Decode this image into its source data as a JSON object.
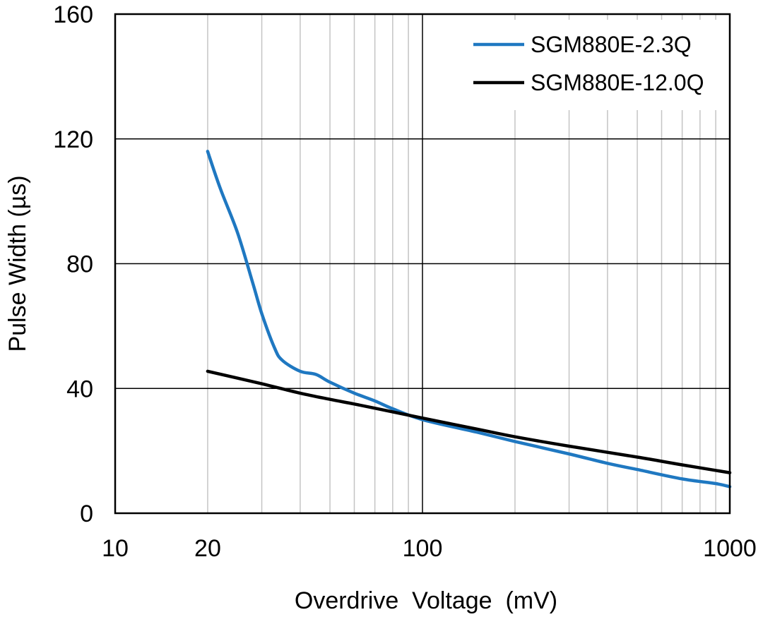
{
  "chart_data": {
    "type": "line",
    "title": "",
    "xlabel": "Overdrive  Voltage  (mV)",
    "ylabel": "Pulse Width (µs)",
    "xscale": "log",
    "xlim": [
      10,
      1000
    ],
    "ylim": [
      0,
      160
    ],
    "x_ticks": [
      10,
      20,
      100,
      1000
    ],
    "x_tick_labels": [
      "10",
      "20",
      "100",
      "1000"
    ],
    "y_ticks": [
      0,
      40,
      80,
      120,
      160
    ],
    "y_tick_labels": [
      "0",
      "40",
      "80",
      "120",
      "160"
    ],
    "grid": true,
    "legend_position": "top-right",
    "series": [
      {
        "name": "SGM880E-2.3Q",
        "color": "#1f78c1",
        "x": [
          20,
          22,
          25,
          28,
          30,
          33,
          35,
          40,
          45,
          50,
          60,
          70,
          80,
          100,
          150,
          200,
          300,
          400,
          500,
          700,
          900,
          1000
        ],
        "y": [
          116,
          104,
          90,
          74,
          64,
          53,
          49,
          45.5,
          44.5,
          42,
          38.5,
          36,
          33.5,
          30,
          26,
          23,
          19,
          16,
          14,
          11,
          9.5,
          8.5
        ]
      },
      {
        "name": "SGM880E-12.0Q",
        "color": "#000000",
        "x": [
          20,
          30,
          40,
          50,
          60,
          80,
          100,
          150,
          200,
          300,
          500,
          700,
          1000
        ],
        "y": [
          45.5,
          41.5,
          38.5,
          36.5,
          35,
          32.5,
          30.5,
          27,
          24.5,
          21.5,
          18,
          15.5,
          13
        ]
      }
    ]
  }
}
